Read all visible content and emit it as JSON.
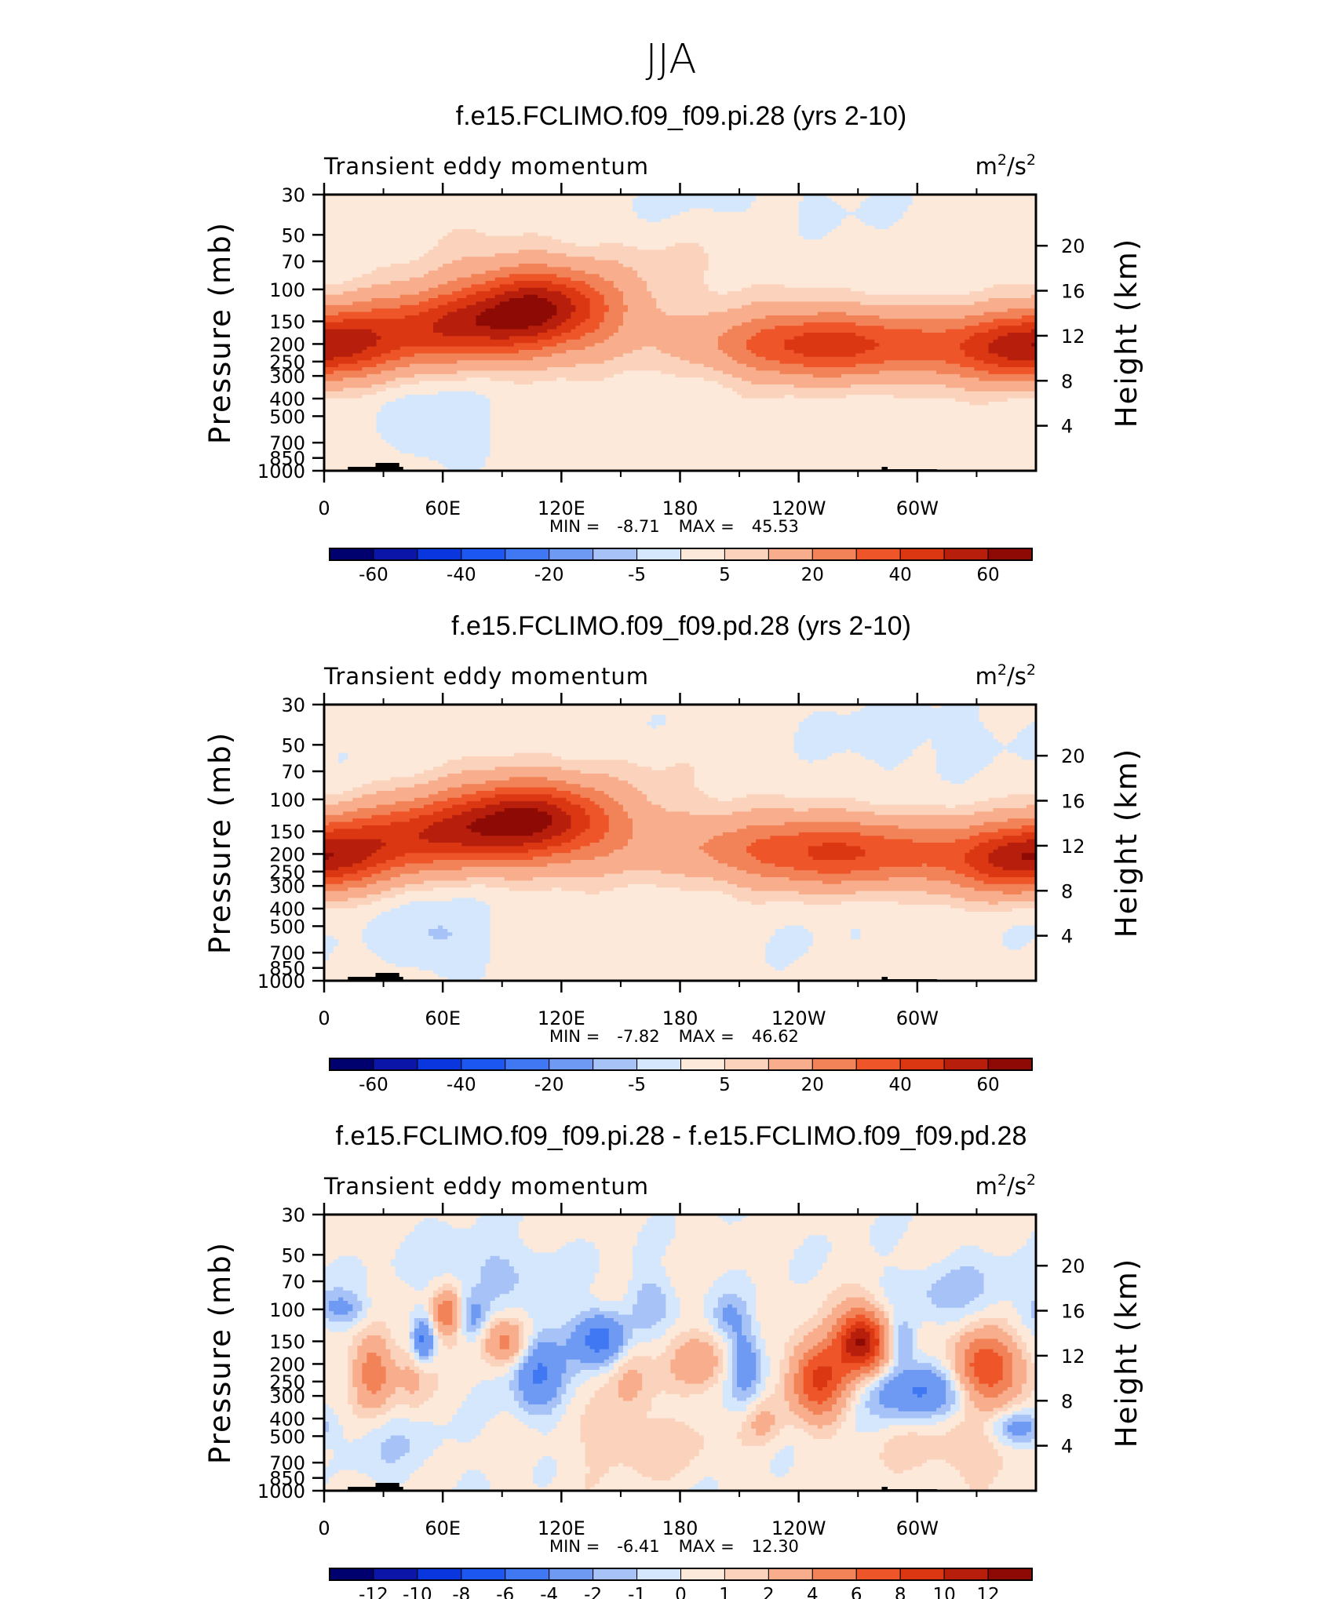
{
  "suptitle": "JJA",
  "palette": {
    "full": [
      "#00006e",
      "#0b16a8",
      "#0a36e0",
      "#1b57f0",
      "#3f78f2",
      "#6f9af4",
      "#a6c2f6",
      "#d5e7fc",
      "#fde9d9",
      "#fbd2bc",
      "#f8ae8c",
      "#f28358",
      "#ee5529",
      "#db3713",
      "#b71f0c",
      "#8e0a05"
    ],
    "diff": [
      "#00006e",
      "#0b16a8",
      "#0a36e0",
      "#1b57f0",
      "#3f78f2",
      "#6f9af4",
      "#a6c2f6",
      "#d5e7fc",
      "#fde9d9",
      "#fbd2bc",
      "#f8ae8c",
      "#f28358",
      "#ee5529",
      "#db3713",
      "#b71f0c",
      "#8e0a05"
    ]
  },
  "chart_data": [
    {
      "type": "heatmap",
      "title": "f.e15.FCLIMO.f09_f09.pi.28 (yrs 2-10)",
      "left_string": "Transient eddy momentum",
      "right_string_base": "m",
      "right_string_sup1": "2",
      "right_string_mid": "/s",
      "right_string_sup2": "2",
      "ylabel": "Pressure (mb)",
      "ylabel_right": "Height (km)",
      "x_ticks": [
        "0",
        "60E",
        "120E",
        "180",
        "120W",
        "60W"
      ],
      "x_tick_lon": [
        0,
        60,
        120,
        180,
        240,
        300
      ],
      "xlim": [
        0,
        360
      ],
      "y_ticks": [
        "30",
        "50",
        "70",
        "100",
        "150",
        "200",
        "250",
        "300",
        "400",
        "500",
        "700",
        "850",
        "1000"
      ],
      "y_tick_p": [
        30,
        50,
        70,
        100,
        150,
        200,
        250,
        300,
        400,
        500,
        700,
        850,
        1000
      ],
      "ylim": [
        1000,
        30
      ],
      "y_right_ticks": [
        "20",
        "16",
        "12",
        "8",
        "4"
      ],
      "y_right_km": [
        20,
        16,
        12,
        8,
        4
      ],
      "min_label": "MIN =",
      "min_value": "-8.71",
      "max_label": "MAX =",
      "max_value": "45.53",
      "colorbar_labels": [
        "-60",
        "-40",
        "-20",
        "-5",
        "5",
        "20",
        "40",
        "60"
      ],
      "colorbar_levels": [
        -70,
        -60,
        -50,
        -40,
        -30,
        -20,
        -10,
        -5,
        0,
        5,
        10,
        20,
        30,
        40,
        50,
        60
      ],
      "features": [
        {
          "lon": 108,
          "p": 115,
          "amp": 40,
          "wlon": 26,
          "wlnp": 0.32
        },
        {
          "lon": 100,
          "p": 160,
          "amp": 22,
          "wlon": 40,
          "wlnp": 0.35
        },
        {
          "lon": 60,
          "p": 160,
          "amp": 30,
          "wlon": 34,
          "wlnp": 0.3
        },
        {
          "lon": 5,
          "p": 200,
          "amp": 26,
          "wlon": 25,
          "wlnp": 0.3
        },
        {
          "lon": 262,
          "p": 200,
          "amp": 36,
          "wlon": 36,
          "wlnp": 0.3
        },
        {
          "lon": 225,
          "p": 205,
          "amp": 14,
          "wlon": 30,
          "wlnp": 0.28
        },
        {
          "lon": 345,
          "p": 215,
          "amp": 32,
          "wlon": 32,
          "wlnp": 0.3
        },
        {
          "lon": 175,
          "p": 70,
          "amp": 4,
          "wlon": 45,
          "wlnp": 0.5
        },
        {
          "lon": 60,
          "p": 50,
          "amp": 3,
          "wlon": 30,
          "wlnp": 0.5
        },
        {
          "lon": 300,
          "p": 45,
          "amp": 2,
          "wlon": 40,
          "wlnp": 0.4
        },
        {
          "lon": 320,
          "p": 650,
          "amp": 2.5,
          "wlon": 50,
          "wlnp": 0.25
        },
        {
          "lon": 200,
          "p": 620,
          "amp": 2.5,
          "wlon": 40,
          "wlnp": 0.25
        },
        {
          "lon": 60,
          "p": 600,
          "amp": -6,
          "wlon": 15,
          "wlnp": 0.3
        },
        {
          "lon": 30,
          "p": 380,
          "amp": -2.5,
          "wlon": 40,
          "wlnp": 0.4
        },
        {
          "lon": 165,
          "p": 35,
          "amp": -3,
          "wlon": 45,
          "wlnp": 0.3
        },
        {
          "lon": 280,
          "p": 40,
          "amp": -3,
          "wlon": 50,
          "wlnp": 0.4
        }
      ]
    },
    {
      "type": "heatmap",
      "title": "f.e15.FCLIMO.f09_f09.pd.28 (yrs 2-10)",
      "left_string": "Transient eddy momentum",
      "right_string_base": "m",
      "right_string_sup1": "2",
      "right_string_mid": "/s",
      "right_string_sup2": "2",
      "ylabel": "Pressure (mb)",
      "ylabel_right": "Height (km)",
      "x_ticks": [
        "0",
        "60E",
        "120E",
        "180",
        "120W",
        "60W"
      ],
      "x_tick_lon": [
        0,
        60,
        120,
        180,
        240,
        300
      ],
      "xlim": [
        0,
        360
      ],
      "y_ticks": [
        "30",
        "50",
        "70",
        "100",
        "150",
        "200",
        "250",
        "300",
        "400",
        "500",
        "700",
        "850",
        "1000"
      ],
      "y_tick_p": [
        30,
        50,
        70,
        100,
        150,
        200,
        250,
        300,
        400,
        500,
        700,
        850,
        1000
      ],
      "ylim": [
        1000,
        30
      ],
      "y_right_ticks": [
        "20",
        "16",
        "12",
        "8",
        "4"
      ],
      "y_right_km": [
        20,
        16,
        12,
        8,
        4
      ],
      "min_label": "MIN =",
      "min_value": "-7.82",
      "max_label": "MAX =",
      "max_value": "46.62",
      "colorbar_labels": [
        "-60",
        "-40",
        "-20",
        "-5",
        "5",
        "20",
        "40",
        "60"
      ],
      "colorbar_levels": [
        -70,
        -60,
        -50,
        -40,
        -30,
        -20,
        -10,
        -5,
        0,
        5,
        10,
        20,
        30,
        40,
        50,
        60
      ],
      "features": [
        {
          "lon": 102,
          "p": 120,
          "amp": 42,
          "wlon": 28,
          "wlnp": 0.32
        },
        {
          "lon": 110,
          "p": 160,
          "amp": 22,
          "wlon": 42,
          "wlnp": 0.35
        },
        {
          "lon": 50,
          "p": 155,
          "amp": 32,
          "wlon": 30,
          "wlnp": 0.3
        },
        {
          "lon": 5,
          "p": 200,
          "amp": 24,
          "wlon": 25,
          "wlnp": 0.3
        },
        {
          "lon": 262,
          "p": 195,
          "amp": 38,
          "wlon": 38,
          "wlnp": 0.3
        },
        {
          "lon": 210,
          "p": 190,
          "amp": 10,
          "wlon": 30,
          "wlnp": 0.3
        },
        {
          "lon": 348,
          "p": 220,
          "amp": 34,
          "wlon": 28,
          "wlnp": 0.3
        },
        {
          "lon": 175,
          "p": 55,
          "amp": 3.5,
          "wlon": 50,
          "wlnp": 0.55
        },
        {
          "lon": 60,
          "p": 600,
          "amp": -6,
          "wlon": 14,
          "wlnp": 0.3
        },
        {
          "lon": 30,
          "p": 380,
          "amp": -3,
          "wlon": 40,
          "wlnp": 0.4
        },
        {
          "lon": 160,
          "p": 40,
          "amp": -3,
          "wlon": 45,
          "wlnp": 0.3
        },
        {
          "lon": 285,
          "p": 45,
          "amp": -3,
          "wlon": 55,
          "wlnp": 0.4
        },
        {
          "lon": 230,
          "p": 640,
          "amp": -2.5,
          "wlon": 40,
          "wlnp": 0.3
        },
        {
          "lon": 200,
          "p": 620,
          "amp": 2,
          "wlon": 35,
          "wlnp": 0.25
        }
      ]
    },
    {
      "type": "heatmap",
      "title": "f.e15.FCLIMO.f09_f09.pi.28 - f.e15.FCLIMO.f09_f09.pd.28",
      "left_string": "Transient eddy momentum",
      "right_string_base": "m",
      "right_string_sup1": "2",
      "right_string_mid": "/s",
      "right_string_sup2": "2",
      "ylabel": "Pressure (mb)",
      "ylabel_right": "Height (km)",
      "x_ticks": [
        "0",
        "60E",
        "120E",
        "180",
        "120W",
        "60W"
      ],
      "x_tick_lon": [
        0,
        60,
        120,
        180,
        240,
        300
      ],
      "xlim": [
        0,
        360
      ],
      "y_ticks": [
        "30",
        "50",
        "70",
        "100",
        "150",
        "200",
        "250",
        "300",
        "400",
        "500",
        "700",
        "850",
        "1000"
      ],
      "y_tick_p": [
        30,
        50,
        70,
        100,
        150,
        200,
        250,
        300,
        400,
        500,
        700,
        850,
        1000
      ],
      "ylim": [
        1000,
        30
      ],
      "y_right_ticks": [
        "20",
        "16",
        "12",
        "8",
        "4"
      ],
      "y_right_km": [
        20,
        16,
        12,
        8,
        4
      ],
      "min_label": "MIN =",
      "min_value": "-6.41",
      "max_label": "MAX =",
      "max_value": "12.30",
      "colorbar_labels": [
        "-12",
        "-10",
        "-8",
        "-6",
        "-4",
        "-2",
        "-1",
        "0",
        "1",
        "2",
        "4",
        "6",
        "8",
        "10",
        "12"
      ],
      "colorbar_levels": [
        -14,
        -12,
        -10,
        -8,
        -6,
        -4,
        -2,
        -1,
        0,
        1,
        2,
        4,
        6,
        8,
        10,
        12
      ],
      "features": [
        {
          "lon": 272,
          "p": 150,
          "amp": 12,
          "wlon": 9,
          "wlnp": 0.28
        },
        {
          "lon": 250,
          "p": 240,
          "amp": 8,
          "wlon": 10,
          "wlnp": 0.35
        },
        {
          "lon": 335,
          "p": 210,
          "amp": 8,
          "wlon": 12,
          "wlnp": 0.3
        },
        {
          "lon": 25,
          "p": 220,
          "amp": 5,
          "wlon": 7,
          "wlnp": 0.3
        },
        {
          "lon": 62,
          "p": 105,
          "amp": 5.5,
          "wlon": 5,
          "wlnp": 0.2
        },
        {
          "lon": 92,
          "p": 150,
          "amp": 4.5,
          "wlon": 8,
          "wlnp": 0.2
        },
        {
          "lon": 190,
          "p": 200,
          "amp": 3,
          "wlon": 10,
          "wlnp": 0.25
        },
        {
          "lon": 155,
          "p": 230,
          "amp": 2.2,
          "wlon": 8,
          "wlnp": 0.4
        },
        {
          "lon": 222,
          "p": 420,
          "amp": 2,
          "wlon": 6,
          "wlnp": 0.2
        },
        {
          "lon": 45,
          "p": 220,
          "amp": 2.2,
          "wlon": 6,
          "wlnp": 0.35
        },
        {
          "lon": 140,
          "p": 145,
          "amp": -5.5,
          "wlon": 10,
          "wlnp": 0.25
        },
        {
          "lon": 108,
          "p": 220,
          "amp": -4.5,
          "wlon": 9,
          "wlnp": 0.4
        },
        {
          "lon": 50,
          "p": 150,
          "amp": -5,
          "wlon": 4,
          "wlnp": 0.2
        },
        {
          "lon": 300,
          "p": 280,
          "amp": -4.5,
          "wlon": 18,
          "wlnp": 0.25
        },
        {
          "lon": 213,
          "p": 200,
          "amp": -3.5,
          "wlon": 6,
          "wlnp": 0.4
        },
        {
          "lon": 292,
          "p": 150,
          "amp": -3,
          "wlon": 5,
          "wlnp": 0.2
        },
        {
          "lon": 75,
          "p": 110,
          "amp": -2.5,
          "wlon": 5,
          "wlnp": 0.2
        },
        {
          "lon": 10,
          "p": 100,
          "amp": -2.5,
          "wlon": 9,
          "wlnp": 0.15
        },
        {
          "lon": 350,
          "p": 450,
          "amp": -3,
          "wlon": 10,
          "wlnp": 0.15
        },
        {
          "lon": 165,
          "p": 90,
          "amp": -2,
          "wlon": 8,
          "wlnp": 0.25
        },
        {
          "lon": 205,
          "p": 110,
          "amp": -2,
          "wlon": 6,
          "wlnp": 0.2
        },
        {
          "lon": 85,
          "p": 60,
          "amp": -1.5,
          "wlon": 25,
          "wlnp": 0.3
        },
        {
          "lon": 320,
          "p": 80,
          "amp": -1.5,
          "wlon": 25,
          "wlnp": 0.3
        },
        {
          "lon": 330,
          "p": 600,
          "amp": 1.5,
          "wlon": 30,
          "wlnp": 0.3
        },
        {
          "lon": 160,
          "p": 550,
          "amp": 1.2,
          "wlon": 30,
          "wlnp": 0.3
        },
        {
          "lon": 30,
          "p": 600,
          "amp": -1.2,
          "wlon": 25,
          "wlnp": 0.3
        }
      ]
    }
  ]
}
